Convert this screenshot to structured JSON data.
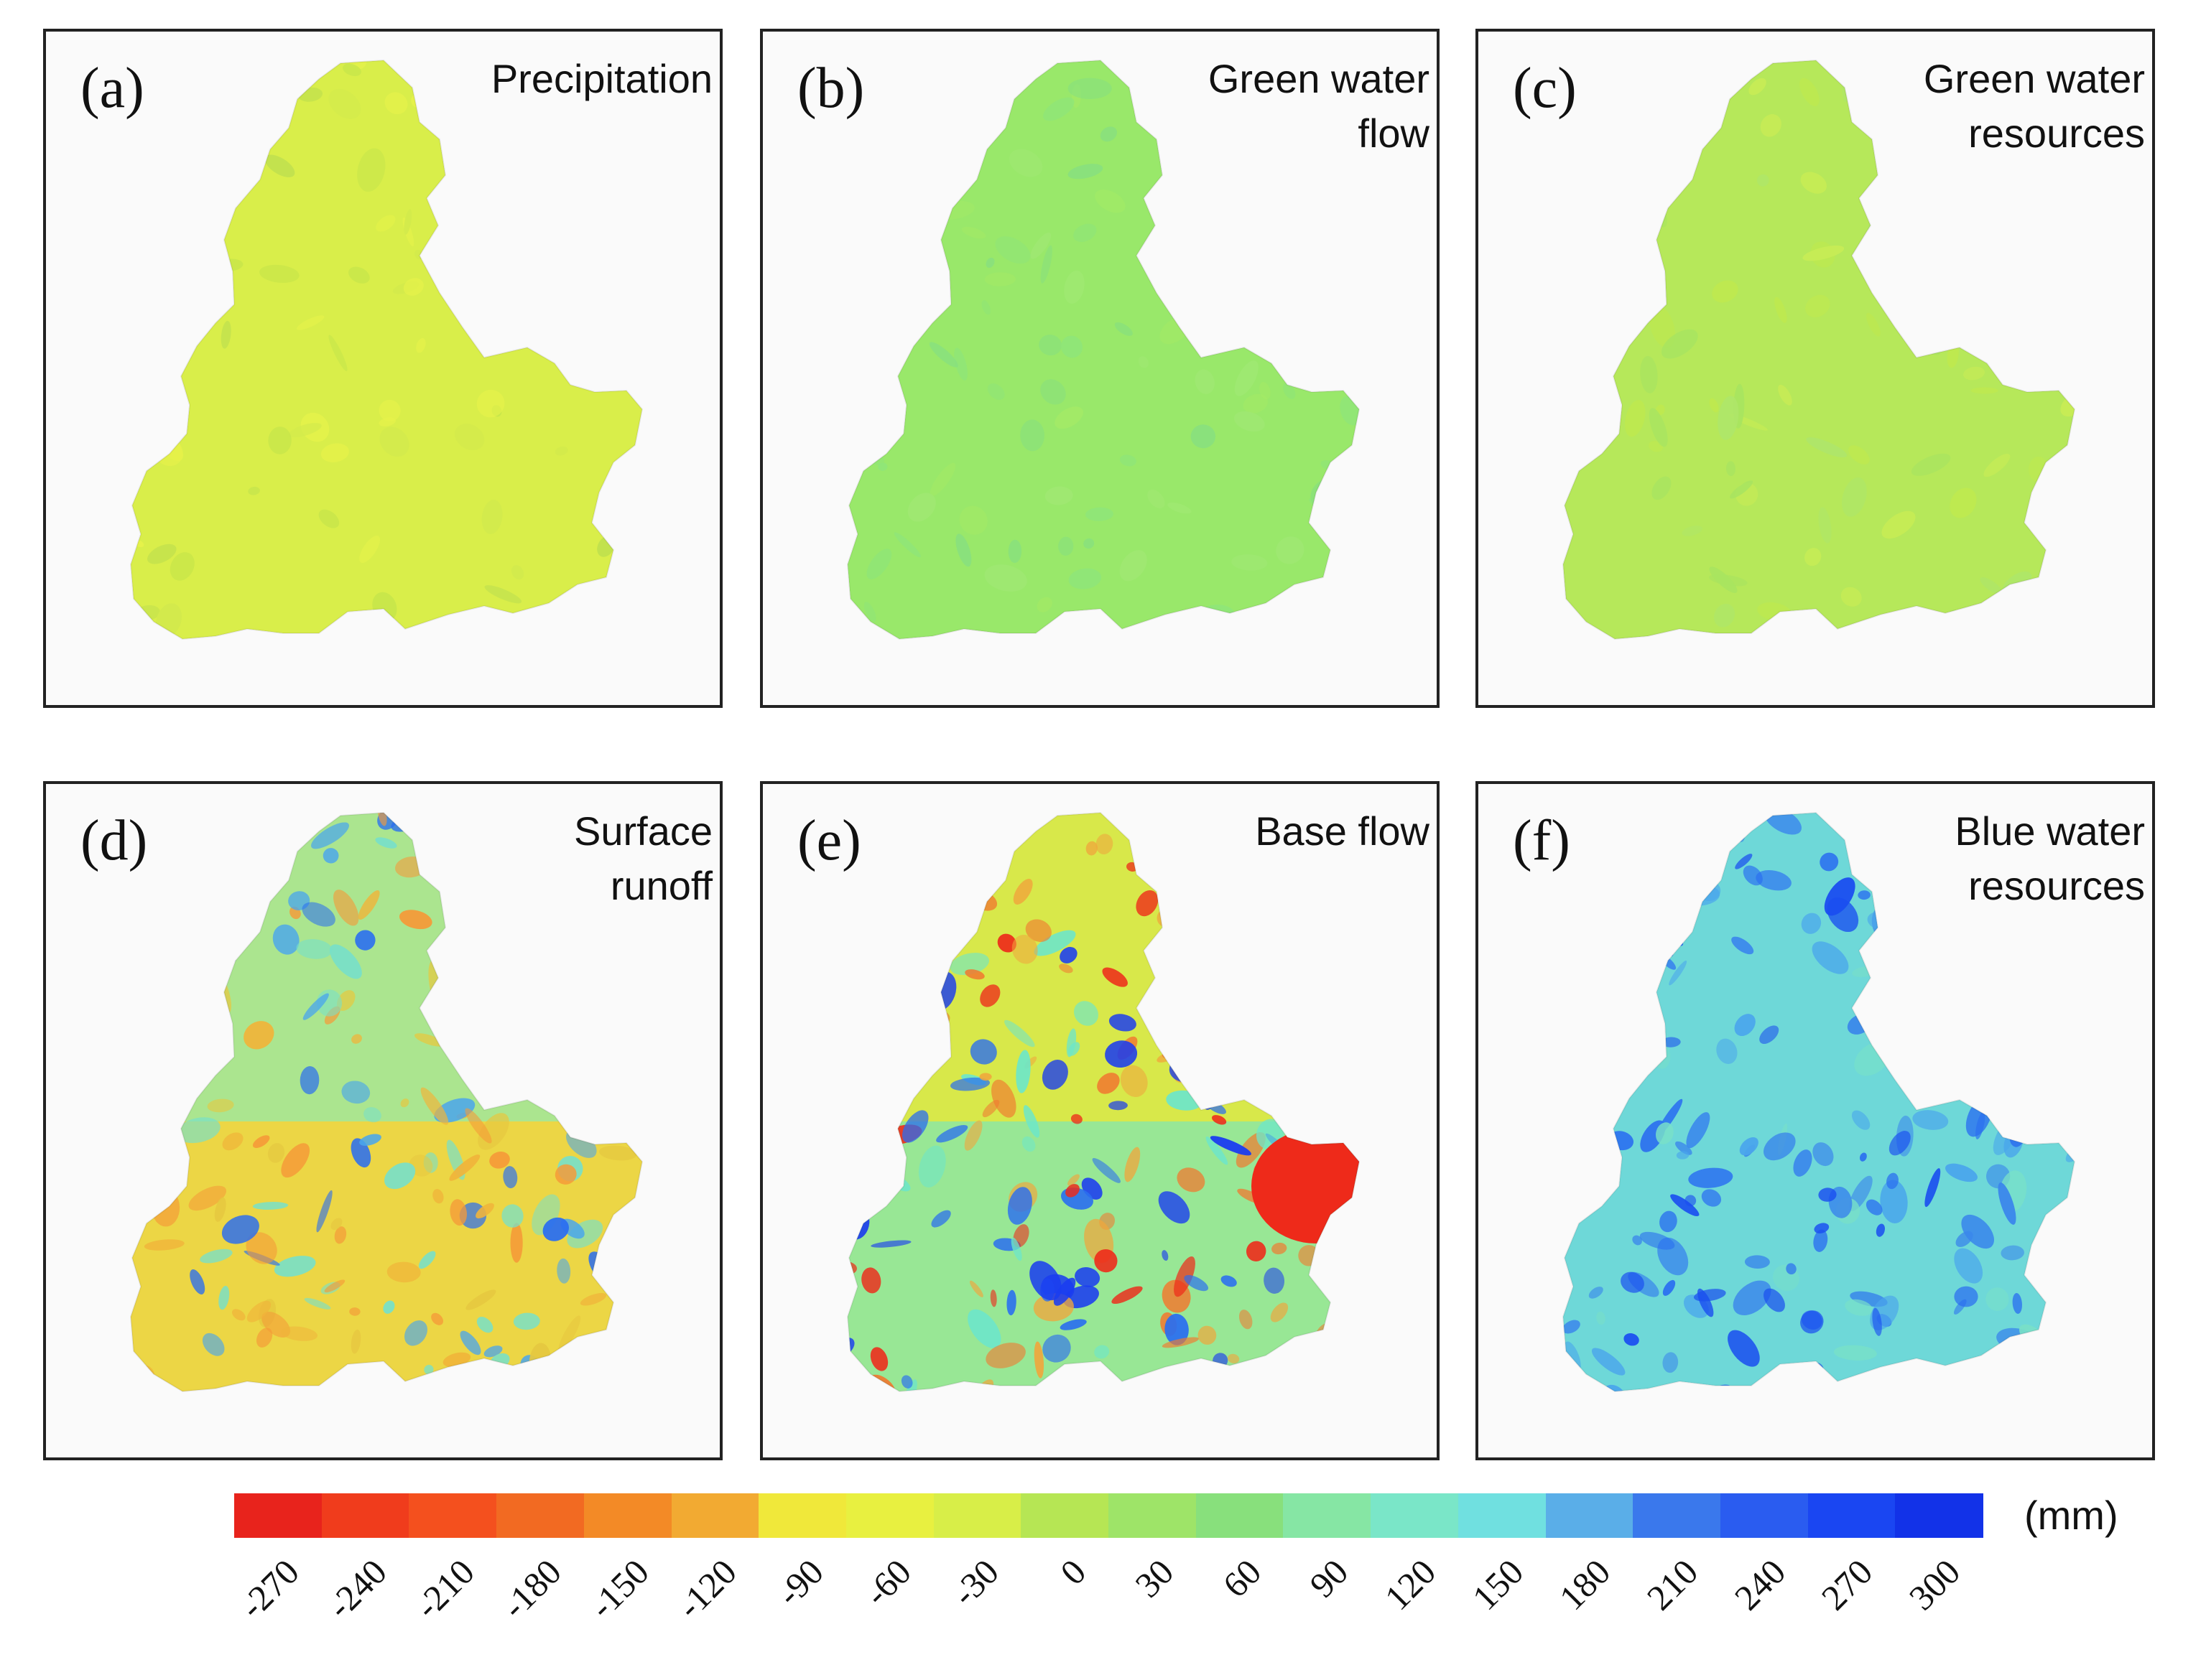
{
  "panels": [
    {
      "letter": "(a)",
      "title": "Precipitation",
      "base": "#d9ee4a",
      "patches": [
        "#c8e64a",
        "#e6f24a",
        "#bfe04e",
        "#d2ea4c"
      ],
      "density": 0.3
    },
    {
      "letter": "(b)",
      "title": "Green water\nflow",
      "base": "#99e86a",
      "patches": [
        "#8fe578",
        "#a3ea66",
        "#88e07e",
        "#9fe872"
      ],
      "density": 0.35
    },
    {
      "letter": "(c)",
      "title": "Green water\nresources",
      "base": "#b6e85a",
      "patches": [
        "#c8ec55",
        "#a8e460",
        "#bfe94e",
        "#aee66a"
      ],
      "density": 0.35
    },
    {
      "letter": "(d)",
      "title": "Surface\nrunoff",
      "base": "#e8ec4a",
      "patches": [
        "#f0b53a",
        "#f59a38",
        "#78e0c8",
        "#4aa6ec",
        "#2a6ef0",
        "#e6c840"
      ],
      "density": 0.75
    },
    {
      "letter": "(e)",
      "title": "Base flow",
      "base": "#d8e84a",
      "patches": [
        "#f0a63c",
        "#f07a30",
        "#ee2a1a",
        "#6ee6c8",
        "#2a6ef0",
        "#1a3cf0"
      ],
      "density": 0.8
    },
    {
      "letter": "(f)",
      "title": "Blue water\nresources",
      "base": "#6ed8d8",
      "patches": [
        "#4aa6ec",
        "#2a6ef0",
        "#3a86ec",
        "#1a4ef0",
        "#78e0c8"
      ],
      "density": 0.75
    }
  ],
  "legend": {
    "unit": "(mm)",
    "ticks": [
      "-270",
      "-240",
      "-210",
      "-180",
      "-150",
      "-120",
      "-90",
      "-60",
      "-30",
      "0",
      "30",
      "60",
      "90",
      "120",
      "150",
      "180",
      "210",
      "240",
      "270",
      "300"
    ],
    "colors": [
      "#e8231c",
      "#f03c1c",
      "#f4501e",
      "#f26a22",
      "#f38a26",
      "#f2aa32",
      "#f0e83a",
      "#e8f040",
      "#d8ee48",
      "#b6e654",
      "#9ee468",
      "#88e07c",
      "#86e6a4",
      "#7ae6c8",
      "#70e0e0",
      "#5aaee8",
      "#3a78ec",
      "#2a5cf0",
      "#1a46f2",
      "#1232e8"
    ]
  }
}
